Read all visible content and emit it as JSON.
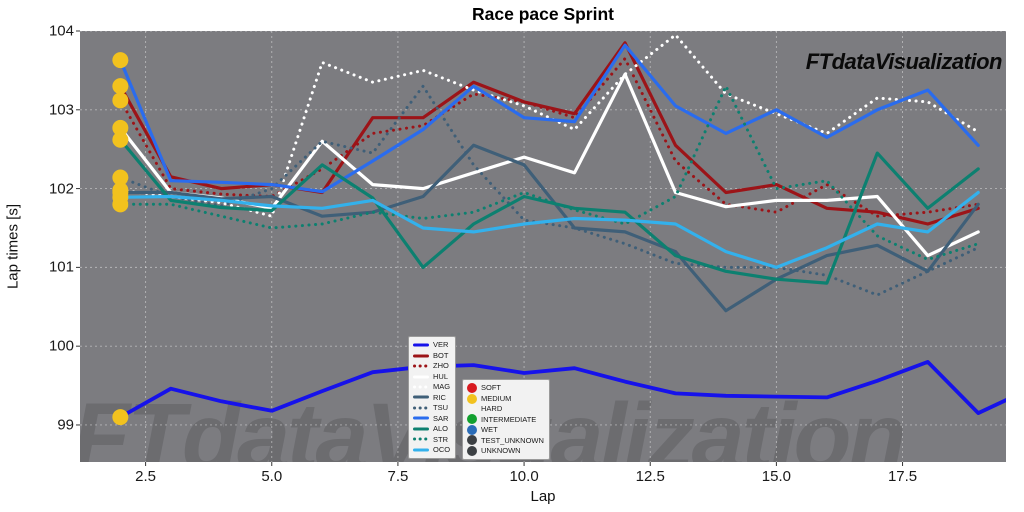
{
  "chart": {
    "title": "Race pace Sprint",
    "xlabel": "Lap",
    "ylabel": "Lap times [s]",
    "watermark_top_right": "FTdataVisualization",
    "watermark_background": "FTdataVisualization",
    "plot_bg_color": "#7c7c80",
    "grid_color": "#efefef",
    "x_tick_labels": [
      "2.5",
      "5.0",
      "7.5",
      "10.0",
      "12.5",
      "15.0",
      "17.5"
    ],
    "y_tick_labels": [
      "99",
      "100",
      "101",
      "102",
      "103",
      "104"
    ]
  },
  "chart_data": {
    "type": "line",
    "title": "Race pace Sprint",
    "xlabel": "Lap",
    "ylabel": "Lap times [s]",
    "xlim": [
      1.2,
      19.55
    ],
    "ylim": [
      98.53,
      104.0
    ],
    "x_ticks": [
      2.5,
      5,
      7.5,
      10,
      12.5,
      15,
      17.5
    ],
    "y_ticks": [
      99,
      100,
      101,
      102,
      103,
      104
    ],
    "grid": true,
    "legend_position": "lower-center",
    "start_lap": 2,
    "start_tyre_markers": {
      "compound": "MEDIUM",
      "color": "#f2c21e",
      "lap": 2,
      "radius": 8
    },
    "series": [
      {
        "name": "VER",
        "color": "#1612ea",
        "style": "solid",
        "values": [
          99.1,
          99.46,
          99.3,
          99.18,
          99.43,
          99.67,
          99.74,
          99.76,
          99.66,
          99.72,
          99.55,
          99.4,
          99.37,
          99.36,
          99.35,
          99.56,
          99.8,
          99.15,
          99.45
        ]
      },
      {
        "name": "BOT",
        "color": "#9c1418",
        "style": "solid",
        "values": [
          103.3,
          102.15,
          102.0,
          102.05,
          101.95,
          102.9,
          102.9,
          103.35,
          103.1,
          102.95,
          103.85,
          102.55,
          101.95,
          102.05,
          101.75,
          101.7,
          101.55,
          101.75
        ]
      },
      {
        "name": "ZHO",
        "color": "#9c1418",
        "style": "dotted",
        "values": [
          103.12,
          102.0,
          101.93,
          101.9,
          102.25,
          102.7,
          102.8,
          103.2,
          103.1,
          102.9,
          103.65,
          102.35,
          101.8,
          101.7,
          102.05,
          101.65,
          101.7,
          101.8
        ]
      },
      {
        "name": "HUL",
        "color": "#ffffff",
        "style": "solid",
        "values": [
          102.77,
          101.95,
          101.88,
          101.75,
          102.6,
          102.05,
          102.0,
          102.2,
          102.4,
          102.2,
          103.45,
          101.95,
          101.77,
          101.85,
          101.85,
          101.9,
          101.15,
          101.45
        ]
      },
      {
        "name": "MAG",
        "color": "#ffffff",
        "style": "dotted",
        "values": [
          101.98,
          101.9,
          101.82,
          101.65,
          103.6,
          103.35,
          103.5,
          103.25,
          103.05,
          102.75,
          103.45,
          103.95,
          103.2,
          102.95,
          102.7,
          103.15,
          103.1,
          102.72
        ]
      },
      {
        "name": "RIC",
        "color": "#3f5f78",
        "style": "solid",
        "values": [
          101.95,
          101.95,
          101.87,
          101.9,
          101.65,
          101.7,
          101.9,
          102.55,
          102.3,
          101.5,
          101.45,
          101.2,
          100.45,
          100.85,
          101.15,
          101.28,
          100.95,
          101.8
        ]
      },
      {
        "name": "TSU",
        "color": "#3f5f78",
        "style": "dotted",
        "values": [
          102.14,
          101.9,
          101.78,
          102.0,
          102.6,
          102.45,
          103.3,
          102.3,
          101.6,
          101.5,
          101.3,
          101.05,
          101.0,
          101.0,
          100.9,
          100.65,
          100.95,
          101.25
        ]
      },
      {
        "name": "SAR",
        "color": "#2a6cee",
        "style": "solid",
        "values": [
          103.63,
          102.1,
          102.08,
          102.05,
          101.96,
          102.35,
          102.75,
          103.3,
          102.9,
          102.85,
          103.82,
          103.05,
          102.7,
          103.0,
          102.65,
          103.0,
          103.25,
          102.55
        ]
      },
      {
        "name": "ALO",
        "color": "#0d8070",
        "style": "solid",
        "values": [
          102.62,
          101.85,
          101.76,
          101.72,
          102.3,
          101.88,
          101.0,
          101.55,
          101.9,
          101.75,
          101.7,
          101.15,
          100.95,
          100.85,
          100.8,
          102.45,
          101.75,
          102.25
        ]
      },
      {
        "name": "STR",
        "color": "#0d8070",
        "style": "dotted",
        "values": [
          101.8,
          101.8,
          101.65,
          101.5,
          101.55,
          101.7,
          101.62,
          101.7,
          101.95,
          101.73,
          101.55,
          101.9,
          103.3,
          102.0,
          102.1,
          101.4,
          101.1,
          101.3
        ]
      },
      {
        "name": "OCO",
        "color": "#33b1ec",
        "style": "solid",
        "values": [
          101.89,
          101.9,
          101.85,
          101.78,
          101.75,
          101.85,
          101.5,
          101.45,
          101.55,
          101.62,
          101.6,
          101.55,
          101.2,
          101.0,
          101.25,
          101.55,
          101.45,
          101.95
        ]
      }
    ]
  },
  "legend_compounds": {
    "items": [
      {
        "label": "SOFT",
        "color": "#d81a20"
      },
      {
        "label": "MEDIUM",
        "color": "#f2c21e"
      },
      {
        "label": "HARD",
        "color": "#f4f4f0"
      },
      {
        "label": "INTERMEDIATE",
        "color": "#12a02e"
      },
      {
        "label": "WET",
        "color": "#2a6cb8"
      },
      {
        "label": "TEST_UNKNOWN",
        "color": "#3c4044"
      },
      {
        "label": "UNKNOWN",
        "color": "#3c4044"
      }
    ]
  }
}
